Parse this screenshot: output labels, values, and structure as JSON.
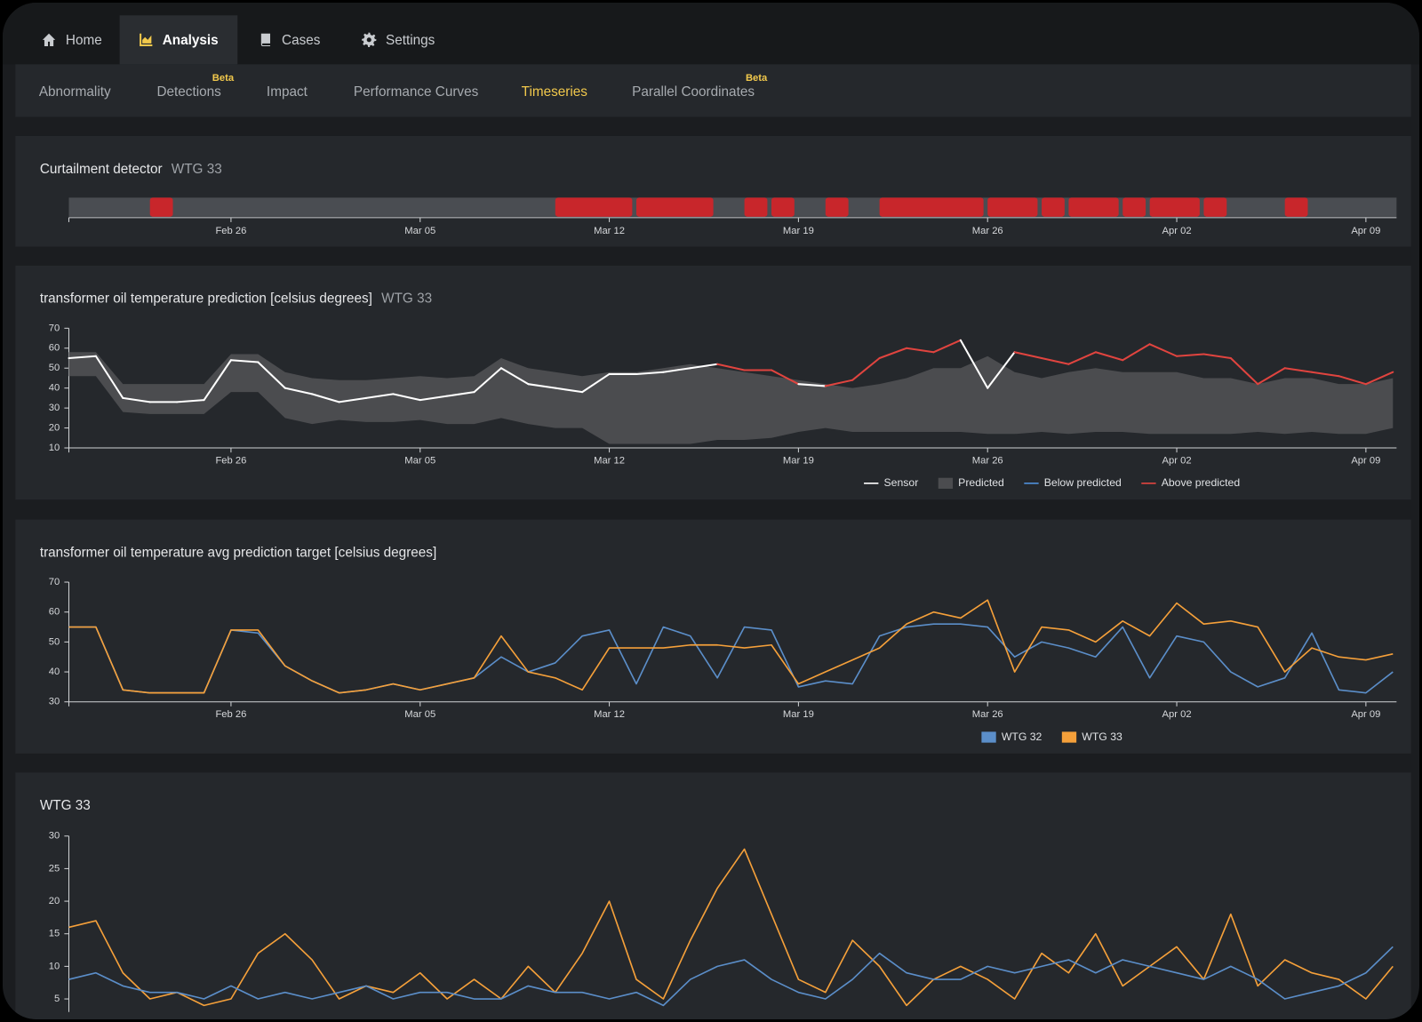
{
  "nav": {
    "tabs": [
      {
        "label": "Home",
        "active": false
      },
      {
        "label": "Analysis",
        "active": true
      },
      {
        "label": "Cases",
        "active": false
      },
      {
        "label": "Settings",
        "active": false
      }
    ]
  },
  "subnav": {
    "tabs": [
      {
        "label": "Abnormality",
        "active": false
      },
      {
        "label": "Detections",
        "badge": "Beta",
        "active": false
      },
      {
        "label": "Impact",
        "active": false
      },
      {
        "label": "Performance Curves",
        "active": false
      },
      {
        "label": "Timeseries",
        "active": true
      },
      {
        "label": "Parallel Coordinates",
        "badge": "Beta",
        "active": false
      }
    ]
  },
  "chart_data": [
    {
      "type": "timeline",
      "title": "Curtailment detector",
      "subtitle": "WTG 33",
      "color": "#c8262b",
      "track_color": "#4a4d52",
      "x": [
        "Feb 20",
        "Feb 21",
        "Feb 22",
        "Feb 23",
        "Feb 24",
        "Feb 25",
        "Feb 26",
        "Feb 27",
        "Feb 28",
        "Mar 01",
        "Mar 02",
        "Mar 03",
        "Mar 04",
        "Mar 05",
        "Mar 06",
        "Mar 07",
        "Mar 08",
        "Mar 09",
        "Mar 10",
        "Mar 11",
        "Mar 12",
        "Mar 13",
        "Mar 14",
        "Mar 15",
        "Mar 16",
        "Mar 17",
        "Mar 18",
        "Mar 19",
        "Mar 20",
        "Mar 21",
        "Mar 22",
        "Mar 23",
        "Mar 24",
        "Mar 25",
        "Mar 26",
        "Mar 27",
        "Mar 28",
        "Mar 29",
        "Mar 30",
        "Mar 31",
        "Apr 01",
        "Apr 02",
        "Apr 03",
        "Apr 04",
        "Apr 05",
        "Apr 06",
        "Apr 07",
        "Apr 08",
        "Apr 09",
        "Apr 10"
      ],
      "xticks": [
        "Feb 26",
        "Mar 05",
        "Mar 12",
        "Mar 19",
        "Mar 26",
        "Apr 02",
        "Apr 09"
      ],
      "intervals": [
        {
          "start": "Feb 23",
          "end": "Feb 23"
        },
        {
          "start": "Mar 10",
          "end": "Mar 12"
        },
        {
          "start": "Mar 13",
          "end": "Mar 15"
        },
        {
          "start": "Mar 17",
          "end": "Mar 17"
        },
        {
          "start": "Mar 18",
          "end": "Mar 18"
        },
        {
          "start": "Mar 20",
          "end": "Mar 20"
        },
        {
          "start": "Mar 22",
          "end": "Mar 25"
        },
        {
          "start": "Mar 26",
          "end": "Mar 27"
        },
        {
          "start": "Mar 28",
          "end": "Mar 28"
        },
        {
          "start": "Mar 29",
          "end": "Mar 30"
        },
        {
          "start": "Mar 31",
          "end": "Mar 31"
        },
        {
          "start": "Apr 01",
          "end": "Apr 02"
        },
        {
          "start": "Apr 03",
          "end": "Apr 03"
        },
        {
          "start": "Apr 06",
          "end": "Apr 06"
        }
      ]
    },
    {
      "type": "band-line",
      "title": "transformer oil temperature prediction [celsius degrees]",
      "subtitle": "WTG 33",
      "x": [
        "Feb 20",
        "Feb 21",
        "Feb 22",
        "Feb 23",
        "Feb 24",
        "Feb 25",
        "Feb 26",
        "Feb 27",
        "Feb 28",
        "Mar 01",
        "Mar 02",
        "Mar 03",
        "Mar 04",
        "Mar 05",
        "Mar 06",
        "Mar 07",
        "Mar 08",
        "Mar 09",
        "Mar 10",
        "Mar 11",
        "Mar 12",
        "Mar 13",
        "Mar 14",
        "Mar 15",
        "Mar 16",
        "Mar 17",
        "Mar 18",
        "Mar 19",
        "Mar 20",
        "Mar 21",
        "Mar 22",
        "Mar 23",
        "Mar 24",
        "Mar 25",
        "Mar 26",
        "Mar 27",
        "Mar 28",
        "Mar 29",
        "Mar 30",
        "Mar 31",
        "Apr 01",
        "Apr 02",
        "Apr 03",
        "Apr 04",
        "Apr 05",
        "Apr 06",
        "Apr 07",
        "Apr 08",
        "Apr 09",
        "Apr 10"
      ],
      "xticks": [
        "Feb 26",
        "Mar 05",
        "Mar 12",
        "Mar 19",
        "Mar 26",
        "Apr 02",
        "Apr 09"
      ],
      "ylim": [
        10,
        70
      ],
      "yticks": [
        10,
        20,
        30,
        40,
        50,
        60,
        70
      ],
      "legend": "bottom-right",
      "series": [
        {
          "name": "Sensor",
          "color": "#ffffff",
          "values": [
            55,
            56,
            35,
            33,
            33,
            34,
            54,
            53,
            40,
            37,
            33,
            35,
            37,
            34,
            36,
            38,
            50,
            42,
            40,
            38,
            47,
            47,
            48,
            50,
            52,
            49,
            49,
            42,
            41,
            44,
            55,
            60,
            58,
            64,
            40,
            58,
            55,
            52,
            58,
            54,
            62,
            56,
            57,
            55,
            42,
            50,
            48,
            46,
            42,
            48
          ]
        },
        {
          "name": "Predicted",
          "color": "#4b4c4f",
          "lower": [
            46,
            46,
            28,
            27,
            27,
            27,
            38,
            38,
            25,
            22,
            24,
            23,
            23,
            24,
            22,
            22,
            25,
            22,
            20,
            20,
            12,
            12,
            12,
            12,
            14,
            14,
            15,
            18,
            20,
            18,
            18,
            18,
            18,
            18,
            17,
            17,
            18,
            17,
            18,
            18,
            17,
            17,
            17,
            17,
            18,
            17,
            18,
            17,
            17,
            20
          ],
          "upper": [
            58,
            58,
            42,
            42,
            42,
            42,
            57,
            57,
            48,
            45,
            44,
            44,
            45,
            46,
            45,
            46,
            55,
            50,
            48,
            46,
            48,
            48,
            50,
            52,
            50,
            48,
            46,
            44,
            42,
            40,
            42,
            45,
            50,
            50,
            56,
            48,
            45,
            48,
            50,
            48,
            48,
            48,
            45,
            45,
            42,
            45,
            45,
            42,
            42,
            45
          ]
        }
      ],
      "below": {
        "name": "Below predicted",
        "color": "#4f8fd8"
      },
      "above": {
        "name": "Above predicted",
        "color": "#e0443f"
      }
    },
    {
      "type": "line",
      "title": "transformer oil temperature avg prediction target [celsius degrees]",
      "x": [
        "Feb 20",
        "Feb 21",
        "Feb 22",
        "Feb 23",
        "Feb 24",
        "Feb 25",
        "Feb 26",
        "Feb 27",
        "Feb 28",
        "Mar 01",
        "Mar 02",
        "Mar 03",
        "Mar 04",
        "Mar 05",
        "Mar 06",
        "Mar 07",
        "Mar 08",
        "Mar 09",
        "Mar 10",
        "Mar 11",
        "Mar 12",
        "Mar 13",
        "Mar 14",
        "Mar 15",
        "Mar 16",
        "Mar 17",
        "Mar 18",
        "Mar 19",
        "Mar 20",
        "Mar 21",
        "Mar 22",
        "Mar 23",
        "Mar 24",
        "Mar 25",
        "Mar 26",
        "Mar 27",
        "Mar 28",
        "Mar 29",
        "Mar 30",
        "Mar 31",
        "Apr 01",
        "Apr 02",
        "Apr 03",
        "Apr 04",
        "Apr 05",
        "Apr 06",
        "Apr 07",
        "Apr 08",
        "Apr 09",
        "Apr 10"
      ],
      "xticks": [
        "Feb 26",
        "Mar 05",
        "Mar 12",
        "Mar 19",
        "Mar 26",
        "Apr 02",
        "Apr 09"
      ],
      "ylim": [
        30,
        70
      ],
      "yticks": [
        30,
        40,
        50,
        60,
        70
      ],
      "legend": "bottom-right",
      "series": [
        {
          "name": "WTG 32",
          "color": "#5b8ec9",
          "values": [
            55,
            55,
            34,
            33,
            33,
            33,
            54,
            53,
            42,
            37,
            33,
            34,
            36,
            34,
            36,
            38,
            45,
            40,
            43,
            52,
            54,
            36,
            55,
            52,
            38,
            55,
            54,
            35,
            37,
            36,
            52,
            55,
            56,
            56,
            55,
            45,
            50,
            48,
            45,
            55,
            38,
            52,
            50,
            40,
            35,
            38,
            53,
            34,
            33,
            40
          ]
        },
        {
          "name": "WTG 33",
          "color": "#f5a03a",
          "values": [
            55,
            55,
            34,
            33,
            33,
            33,
            54,
            54,
            42,
            37,
            33,
            34,
            36,
            34,
            36,
            38,
            52,
            40,
            38,
            34,
            48,
            48,
            48,
            49,
            49,
            48,
            49,
            36,
            40,
            44,
            48,
            56,
            60,
            58,
            64,
            40,
            55,
            54,
            50,
            57,
            52,
            63,
            56,
            57,
            55,
            40,
            48,
            45,
            44,
            46
          ]
        }
      ]
    },
    {
      "type": "line",
      "title": "WTG 33",
      "x": [
        "Feb 20",
        "Feb 21",
        "Feb 22",
        "Feb 23",
        "Feb 24",
        "Feb 25",
        "Feb 26",
        "Feb 27",
        "Feb 28",
        "Mar 01",
        "Mar 02",
        "Mar 03",
        "Mar 04",
        "Mar 05",
        "Mar 06",
        "Mar 07",
        "Mar 08",
        "Mar 09",
        "Mar 10",
        "Mar 11",
        "Mar 12",
        "Mar 13",
        "Mar 14",
        "Mar 15",
        "Mar 16",
        "Mar 17",
        "Mar 18",
        "Mar 19",
        "Mar 20",
        "Mar 21",
        "Mar 22",
        "Mar 23",
        "Mar 24",
        "Mar 25",
        "Mar 26",
        "Mar 27",
        "Mar 28",
        "Mar 29",
        "Mar 30",
        "Mar 31",
        "Apr 01",
        "Apr 02",
        "Apr 03",
        "Apr 04",
        "Apr 05",
        "Apr 06",
        "Apr 07",
        "Apr 08",
        "Apr 09",
        "Apr 10"
      ],
      "ylim": [
        3,
        30
      ],
      "yticks": [
        5,
        10,
        15,
        20,
        25,
        30
      ],
      "series": [
        {
          "color": "#f5a03a",
          "values": [
            16,
            17,
            9,
            5,
            6,
            4,
            5,
            12,
            15,
            11,
            5,
            7,
            6,
            9,
            5,
            8,
            5,
            10,
            6,
            12,
            20,
            8,
            5,
            14,
            22,
            28,
            18,
            8,
            6,
            14,
            10,
            4,
            8,
            10,
            8,
            5,
            12,
            9,
            15,
            7,
            10,
            13,
            8,
            18,
            7,
            11,
            9,
            8,
            5,
            10
          ]
        },
        {
          "color": "#5b8ec9",
          "values": [
            8,
            9,
            7,
            6,
            6,
            5,
            7,
            5,
            6,
            5,
            6,
            7,
            5,
            6,
            6,
            5,
            5,
            7,
            6,
            6,
            5,
            6,
            4,
            8,
            10,
            11,
            8,
            6,
            5,
            8,
            12,
            9,
            8,
            8,
            10,
            9,
            10,
            11,
            9,
            11,
            10,
            9,
            8,
            10,
            8,
            5,
            6,
            7,
            9,
            13
          ]
        }
      ]
    }
  ]
}
